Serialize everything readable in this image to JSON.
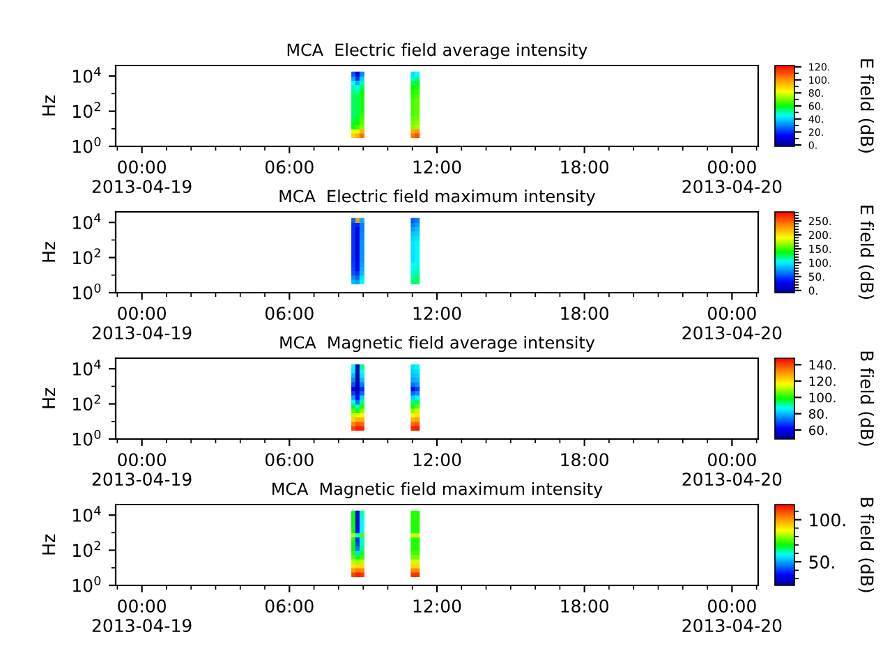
{
  "chart_data": [
    {
      "type": "scatter",
      "title": "MCA  Electric field average intensity",
      "ylabel": "Hz",
      "clabel": "E field (dB)",
      "log": "y",
      "marker": "square",
      "x": [
        "2013-04-19T08:37",
        "2013-04-19T08:37",
        "2013-04-19T08:37",
        "2013-04-19T08:37",
        "2013-04-19T08:37",
        "2013-04-19T08:37",
        "2013-04-19T08:37",
        "2013-04-19T08:37",
        "2013-04-19T08:37",
        "2013-04-19T08:37",
        "2013-04-19T08:37",
        "2013-04-19T08:37",
        "2013-04-19T08:37",
        "2013-04-19T08:37",
        "2013-04-19T08:37",
        "2013-04-19T08:47",
        "2013-04-19T08:47",
        "2013-04-19T08:47",
        "2013-04-19T08:47",
        "2013-04-19T08:47",
        "2013-04-19T08:47",
        "2013-04-19T08:47",
        "2013-04-19T08:47",
        "2013-04-19T08:47",
        "2013-04-19T08:47",
        "2013-04-19T08:47",
        "2013-04-19T08:47",
        "2013-04-19T08:47",
        "2013-04-19T08:47",
        "2013-04-19T08:47",
        "2013-04-19T08:57",
        "2013-04-19T08:57",
        "2013-04-19T08:57",
        "2013-04-19T08:57",
        "2013-04-19T08:57",
        "2013-04-19T08:57",
        "2013-04-19T08:57",
        "2013-04-19T08:57",
        "2013-04-19T08:57",
        "2013-04-19T08:57",
        "2013-04-19T08:57",
        "2013-04-19T08:57",
        "2013-04-19T08:57",
        "2013-04-19T08:57",
        "2013-04-19T08:57",
        "2013-04-19T11:02",
        "2013-04-19T11:02",
        "2013-04-19T11:02",
        "2013-04-19T11:02",
        "2013-04-19T11:02",
        "2013-04-19T11:02",
        "2013-04-19T11:02",
        "2013-04-19T11:02",
        "2013-04-19T11:02",
        "2013-04-19T11:02",
        "2013-04-19T11:02",
        "2013-04-19T11:02",
        "2013-04-19T11:02",
        "2013-04-19T11:02",
        "2013-04-19T11:02",
        "2013-04-19T11:12",
        "2013-04-19T11:12",
        "2013-04-19T11:12",
        "2013-04-19T11:12",
        "2013-04-19T11:12",
        "2013-04-19T11:12",
        "2013-04-19T11:12",
        "2013-04-19T11:12",
        "2013-04-19T11:12",
        "2013-04-19T11:12",
        "2013-04-19T11:12",
        "2013-04-19T11:12",
        "2013-04-19T11:12",
        "2013-04-19T11:12",
        "2013-04-19T11:12"
      ],
      "values": [
        4.2,
        7.5,
        13,
        24,
        42,
        75,
        130,
        240,
        420,
        750,
        1300,
        2400,
        4200,
        7500,
        13000,
        4.2,
        7.5,
        13,
        24,
        42,
        75,
        130,
        240,
        420,
        750,
        1300,
        2400,
        4200,
        7500,
        13000,
        4.2,
        7.5,
        13,
        24,
        42,
        75,
        130,
        240,
        420,
        750,
        1300,
        2400,
        4200,
        7500,
        13000,
        4.2,
        7.5,
        13,
        24,
        42,
        75,
        130,
        240,
        420,
        750,
        1300,
        2400,
        4200,
        7500,
        13000,
        4.2,
        7.5,
        13,
        24,
        42,
        75,
        130,
        240,
        420,
        750,
        1300,
        2400,
        4200,
        7500,
        13000
      ],
      "cvalues": [
        90,
        80,
        62,
        58,
        55,
        55,
        55,
        55,
        55,
        55,
        52,
        50,
        45,
        35,
        25,
        95,
        80,
        65,
        60,
        58,
        55,
        55,
        55,
        55,
        55,
        50,
        45,
        35,
        20,
        8,
        105,
        95,
        72,
        68,
        66,
        64,
        62,
        62,
        62,
        62,
        60,
        55,
        50,
        40,
        30,
        105,
        95,
        72,
        70,
        68,
        66,
        66,
        66,
        66,
        64,
        62,
        60,
        55,
        48,
        42,
        110,
        100,
        75,
        72,
        70,
        68,
        68,
        68,
        68,
        66,
        64,
        62,
        58,
        52,
        45
      ],
      "xlim": [
        "2013-04-18T22:56",
        "2013-04-20T01:04"
      ],
      "xticks": [
        {
          "value": "2013-04-18T23:00",
          "label": null
        },
        {
          "value": "2013-04-19T00:00",
          "label": "00:00\n2013-04-19"
        },
        {
          "value": "2013-04-19T01:00",
          "label": null
        },
        {
          "value": "2013-04-19T02:00",
          "label": null
        },
        {
          "value": "2013-04-19T03:00",
          "label": null
        },
        {
          "value": "2013-04-19T04:00",
          "label": null
        },
        {
          "value": "2013-04-19T05:00",
          "label": null
        },
        {
          "value": "2013-04-19T06:00",
          "label": "06:00"
        },
        {
          "value": "2013-04-19T07:00",
          "label": null
        },
        {
          "value": "2013-04-19T08:00",
          "label": null
        },
        {
          "value": "2013-04-19T09:00",
          "label": null
        },
        {
          "value": "2013-04-19T10:00",
          "label": null
        },
        {
          "value": "2013-04-19T11:00",
          "label": null
        },
        {
          "value": "2013-04-19T12:00",
          "label": "12:00"
        },
        {
          "value": "2013-04-19T13:00",
          "label": null
        },
        {
          "value": "2013-04-19T14:00",
          "label": null
        },
        {
          "value": "2013-04-19T15:00",
          "label": null
        },
        {
          "value": "2013-04-19T16:00",
          "label": null
        },
        {
          "value": "2013-04-19T17:00",
          "label": null
        },
        {
          "value": "2013-04-19T18:00",
          "label": "18:00"
        },
        {
          "value": "2013-04-19T19:00",
          "label": null
        },
        {
          "value": "2013-04-19T20:00",
          "label": null
        },
        {
          "value": "2013-04-19T21:00",
          "label": null
        },
        {
          "value": "2013-04-19T22:00",
          "label": null
        },
        {
          "value": "2013-04-19T23:00",
          "label": null
        },
        {
          "value": "2013-04-20T00:00",
          "label": "00:00\n2013-04-20"
        },
        {
          "value": "2013-04-20T01:00",
          "label": null
        }
      ],
      "ylim": [
        1,
        40000
      ],
      "yticks": [
        {
          "value": 1,
          "label": "10$^{0}$"
        },
        {
          "value": 10,
          "label": null
        },
        {
          "value": 100,
          "label": "10$^{2}$"
        },
        {
          "value": 1000,
          "label": null
        },
        {
          "value": 10000,
          "label": "10$^{4}$"
        }
      ],
      "clim": [
        -2,
        122
      ],
      "cticks": [
        {
          "value": 0,
          "label": "0."
        },
        {
          "value": 10,
          "label": null
        },
        {
          "value": 20,
          "label": "20."
        },
        {
          "value": 30,
          "label": null
        },
        {
          "value": 40,
          "label": "40."
        },
        {
          "value": 50,
          "label": null
        },
        {
          "value": 60,
          "label": "60."
        },
        {
          "value": 70,
          "label": null
        },
        {
          "value": 80,
          "label": "80."
        },
        {
          "value": 90,
          "label": null
        },
        {
          "value": 100,
          "label": "100."
        },
        {
          "value": 110,
          "label": null
        },
        {
          "value": 120,
          "label": "120."
        }
      ]
    },
    {
      "type": "scatter",
      "title": "MCA  Electric field maximum intensity",
      "ylabel": "Hz",
      "clabel": "E field (dB)",
      "log": "y",
      "marker": "square",
      "x": [
        "2013-04-19T08:37",
        "2013-04-19T08:37",
        "2013-04-19T08:37",
        "2013-04-19T08:37",
        "2013-04-19T08:37",
        "2013-04-19T08:37",
        "2013-04-19T08:37",
        "2013-04-19T08:37",
        "2013-04-19T08:37",
        "2013-04-19T08:37",
        "2013-04-19T08:37",
        "2013-04-19T08:37",
        "2013-04-19T08:37",
        "2013-04-19T08:37",
        "2013-04-19T08:37",
        "2013-04-19T08:47",
        "2013-04-19T08:47",
        "2013-04-19T08:47",
        "2013-04-19T08:47",
        "2013-04-19T08:47",
        "2013-04-19T08:47",
        "2013-04-19T08:47",
        "2013-04-19T08:47",
        "2013-04-19T08:47",
        "2013-04-19T08:47",
        "2013-04-19T08:47",
        "2013-04-19T08:47",
        "2013-04-19T08:47",
        "2013-04-19T08:47",
        "2013-04-19T08:47",
        "2013-04-19T08:57",
        "2013-04-19T08:57",
        "2013-04-19T08:57",
        "2013-04-19T08:57",
        "2013-04-19T08:57",
        "2013-04-19T08:57",
        "2013-04-19T08:57",
        "2013-04-19T08:57",
        "2013-04-19T08:57",
        "2013-04-19T08:57",
        "2013-04-19T08:57",
        "2013-04-19T08:57",
        "2013-04-19T08:57",
        "2013-04-19T08:57",
        "2013-04-19T08:57",
        "2013-04-19T11:02",
        "2013-04-19T11:02",
        "2013-04-19T11:02",
        "2013-04-19T11:02",
        "2013-04-19T11:02",
        "2013-04-19T11:02",
        "2013-04-19T11:02",
        "2013-04-19T11:02",
        "2013-04-19T11:02",
        "2013-04-19T11:02",
        "2013-04-19T11:02",
        "2013-04-19T11:02",
        "2013-04-19T11:02",
        "2013-04-19T11:02",
        "2013-04-19T11:02",
        "2013-04-19T11:12",
        "2013-04-19T11:12",
        "2013-04-19T11:12",
        "2013-04-19T11:12",
        "2013-04-19T11:12",
        "2013-04-19T11:12",
        "2013-04-19T11:12",
        "2013-04-19T11:12",
        "2013-04-19T11:12",
        "2013-04-19T11:12",
        "2013-04-19T11:12",
        "2013-04-19T11:12",
        "2013-04-19T11:12",
        "2013-04-19T11:12",
        "2013-04-19T11:12"
      ],
      "values": [
        4.2,
        7.5,
        13,
        24,
        42,
        75,
        130,
        240,
        420,
        750,
        1300,
        2400,
        4200,
        7500,
        13000,
        4.2,
        7.5,
        13,
        24,
        42,
        75,
        130,
        240,
        420,
        750,
        1300,
        2400,
        4200,
        7500,
        13000,
        4.2,
        7.5,
        13,
        24,
        42,
        75,
        130,
        240,
        420,
        750,
        1300,
        2400,
        4200,
        7500,
        13000,
        4.2,
        7.5,
        13,
        24,
        42,
        75,
        130,
        240,
        420,
        750,
        1300,
        2400,
        4200,
        7500,
        13000,
        4.2,
        7.5,
        13,
        24,
        42,
        75,
        130,
        240,
        420,
        750,
        1300,
        2400,
        4200,
        7500,
        13000
      ],
      "cvalues": [
        85,
        70,
        55,
        50,
        48,
        45,
        45,
        45,
        45,
        45,
        45,
        45,
        45,
        45,
        60,
        75,
        60,
        40,
        30,
        25,
        22,
        20,
        20,
        20,
        20,
        20,
        20,
        20,
        40,
        230,
        105,
        95,
        85,
        80,
        75,
        72,
        72,
        72,
        72,
        72,
        70,
        70,
        65,
        65,
        80,
        120,
        115,
        110,
        105,
        100,
        95,
        95,
        95,
        95,
        95,
        90,
        85,
        75,
        65,
        55,
        125,
        120,
        115,
        110,
        105,
        100,
        100,
        100,
        100,
        100,
        95,
        90,
        85,
        75,
        65
      ],
      "xlim": [
        "2013-04-18T22:56",
        "2013-04-20T01:04"
      ],
      "xticks": [
        {
          "value": "2013-04-18T23:00",
          "label": null
        },
        {
          "value": "2013-04-19T00:00",
          "label": "00:00\n2013-04-19"
        },
        {
          "value": "2013-04-19T01:00",
          "label": null
        },
        {
          "value": "2013-04-19T02:00",
          "label": null
        },
        {
          "value": "2013-04-19T03:00",
          "label": null
        },
        {
          "value": "2013-04-19T04:00",
          "label": null
        },
        {
          "value": "2013-04-19T05:00",
          "label": null
        },
        {
          "value": "2013-04-19T06:00",
          "label": "06:00"
        },
        {
          "value": "2013-04-19T07:00",
          "label": null
        },
        {
          "value": "2013-04-19T08:00",
          "label": null
        },
        {
          "value": "2013-04-19T09:00",
          "label": null
        },
        {
          "value": "2013-04-19T10:00",
          "label": null
        },
        {
          "value": "2013-04-19T11:00",
          "label": null
        },
        {
          "value": "2013-04-19T12:00",
          "label": "12:00"
        },
        {
          "value": "2013-04-19T13:00",
          "label": null
        },
        {
          "value": "2013-04-19T14:00",
          "label": null
        },
        {
          "value": "2013-04-19T15:00",
          "label": null
        },
        {
          "value": "2013-04-19T16:00",
          "label": null
        },
        {
          "value": "2013-04-19T17:00",
          "label": null
        },
        {
          "value": "2013-04-19T18:00",
          "label": "18:00"
        },
        {
          "value": "2013-04-19T19:00",
          "label": null
        },
        {
          "value": "2013-04-19T20:00",
          "label": null
        },
        {
          "value": "2013-04-19T21:00",
          "label": null
        },
        {
          "value": "2013-04-19T22:00",
          "label": null
        },
        {
          "value": "2013-04-19T23:00",
          "label": null
        },
        {
          "value": "2013-04-20T00:00",
          "label": "00:00\n2013-04-20"
        },
        {
          "value": "2013-04-20T01:00",
          "label": null
        }
      ],
      "ylim": [
        1,
        40000
      ],
      "yticks": [
        {
          "value": 1,
          "label": "10$^{0}$"
        },
        {
          "value": 10,
          "label": null
        },
        {
          "value": 100,
          "label": "10$^{2}$"
        },
        {
          "value": 1000,
          "label": null
        },
        {
          "value": 10000,
          "label": "10$^{4}$"
        }
      ],
      "clim": [
        -8,
        283
      ],
      "cticks": [
        {
          "value": 0,
          "label": "0."
        },
        {
          "value": 10,
          "label": null
        },
        {
          "value": 20,
          "label": null
        },
        {
          "value": 30,
          "label": null
        },
        {
          "value": 40,
          "label": null
        },
        {
          "value": 50,
          "label": "50."
        },
        {
          "value": 60,
          "label": null
        },
        {
          "value": 70,
          "label": null
        },
        {
          "value": 80,
          "label": null
        },
        {
          "value": 90,
          "label": null
        },
        {
          "value": 100,
          "label": "100."
        },
        {
          "value": 110,
          "label": null
        },
        {
          "value": 120,
          "label": null
        },
        {
          "value": 130,
          "label": null
        },
        {
          "value": 140,
          "label": null
        },
        {
          "value": 150,
          "label": "150."
        },
        {
          "value": 160,
          "label": null
        },
        {
          "value": 170,
          "label": null
        },
        {
          "value": 180,
          "label": null
        },
        {
          "value": 190,
          "label": null
        },
        {
          "value": 200,
          "label": "200."
        },
        {
          "value": 210,
          "label": null
        },
        {
          "value": 220,
          "label": null
        },
        {
          "value": 230,
          "label": null
        },
        {
          "value": 240,
          "label": null
        },
        {
          "value": 250,
          "label": "250."
        },
        {
          "value": 260,
          "label": null
        },
        {
          "value": 270,
          "label": null
        },
        {
          "value": 280,
          "label": null
        }
      ]
    },
    {
      "type": "scatter",
      "title": "MCA  Magnetic field average intensity",
      "ylabel": "Hz",
      "clabel": "B field (dB)",
      "log": "y",
      "marker": "square",
      "x": [
        "2013-04-19T08:37",
        "2013-04-19T08:37",
        "2013-04-19T08:37",
        "2013-04-19T08:37",
        "2013-04-19T08:37",
        "2013-04-19T08:37",
        "2013-04-19T08:37",
        "2013-04-19T08:37",
        "2013-04-19T08:37",
        "2013-04-19T08:37",
        "2013-04-19T08:37",
        "2013-04-19T08:37",
        "2013-04-19T08:37",
        "2013-04-19T08:37",
        "2013-04-19T08:37",
        "2013-04-19T08:47",
        "2013-04-19T08:47",
        "2013-04-19T08:47",
        "2013-04-19T08:47",
        "2013-04-19T08:47",
        "2013-04-19T08:47",
        "2013-04-19T08:47",
        "2013-04-19T08:47",
        "2013-04-19T08:47",
        "2013-04-19T08:47",
        "2013-04-19T08:47",
        "2013-04-19T08:47",
        "2013-04-19T08:47",
        "2013-04-19T08:47",
        "2013-04-19T08:47",
        "2013-04-19T08:57",
        "2013-04-19T08:57",
        "2013-04-19T08:57",
        "2013-04-19T08:57",
        "2013-04-19T08:57",
        "2013-04-19T08:57",
        "2013-04-19T08:57",
        "2013-04-19T08:57",
        "2013-04-19T08:57",
        "2013-04-19T08:57",
        "2013-04-19T08:57",
        "2013-04-19T08:57",
        "2013-04-19T08:57",
        "2013-04-19T08:57",
        "2013-04-19T08:57",
        "2013-04-19T11:02",
        "2013-04-19T11:02",
        "2013-04-19T11:02",
        "2013-04-19T11:02",
        "2013-04-19T11:02",
        "2013-04-19T11:02",
        "2013-04-19T11:02",
        "2013-04-19T11:02",
        "2013-04-19T11:02",
        "2013-04-19T11:02",
        "2013-04-19T11:02",
        "2013-04-19T11:02",
        "2013-04-19T11:02",
        "2013-04-19T11:02",
        "2013-04-19T11:02",
        "2013-04-19T11:12",
        "2013-04-19T11:12",
        "2013-04-19T11:12",
        "2013-04-19T11:12",
        "2013-04-19T11:12",
        "2013-04-19T11:12",
        "2013-04-19T11:12",
        "2013-04-19T11:12",
        "2013-04-19T11:12",
        "2013-04-19T11:12",
        "2013-04-19T11:12",
        "2013-04-19T11:12",
        "2013-04-19T11:12",
        "2013-04-19T11:12",
        "2013-04-19T11:12"
      ],
      "values": [
        4.2,
        7.5,
        13,
        24,
        42,
        75,
        130,
        240,
        420,
        750,
        1300,
        2400,
        4200,
        7500,
        13000,
        4.2,
        7.5,
        13,
        24,
        42,
        75,
        130,
        240,
        420,
        750,
        1300,
        2400,
        4200,
        7500,
        13000,
        4.2,
        7.5,
        13,
        24,
        42,
        75,
        130,
        240,
        420,
        750,
        1300,
        2400,
        4200,
        7500,
        13000,
        4.2,
        7.5,
        13,
        24,
        42,
        75,
        130,
        240,
        420,
        750,
        1300,
        2400,
        4200,
        7500,
        13000,
        4.2,
        7.5,
        13,
        24,
        42,
        75,
        130,
        240,
        420,
        750,
        1300,
        2400,
        4200,
        7500,
        13000
      ],
      "cvalues": [
        140,
        132,
        122,
        112,
        104,
        96,
        88,
        78,
        68,
        62,
        70,
        76,
        80,
        85,
        88,
        145,
        138,
        126,
        114,
        100,
        86,
        72,
        62,
        55,
        52,
        52,
        52,
        52,
        53,
        55,
        144,
        136,
        126,
        116,
        108,
        100,
        92,
        82,
        72,
        66,
        74,
        80,
        84,
        88,
        92,
        144,
        136,
        126,
        116,
        108,
        100,
        92,
        82,
        72,
        62,
        72,
        78,
        80,
        82,
        84,
        145,
        138,
        128,
        120,
        112,
        104,
        95,
        86,
        76,
        68,
        76,
        80,
        82,
        84,
        86
      ],
      "xlim": [
        "2013-04-18T22:56",
        "2013-04-20T01:04"
      ],
      "xticks": [
        {
          "value": "2013-04-18T23:00",
          "label": null
        },
        {
          "value": "2013-04-19T00:00",
          "label": "00:00\n2013-04-19"
        },
        {
          "value": "2013-04-19T01:00",
          "label": null
        },
        {
          "value": "2013-04-19T02:00",
          "label": null
        },
        {
          "value": "2013-04-19T03:00",
          "label": null
        },
        {
          "value": "2013-04-19T04:00",
          "label": null
        },
        {
          "value": "2013-04-19T05:00",
          "label": null
        },
        {
          "value": "2013-04-19T06:00",
          "label": "06:00"
        },
        {
          "value": "2013-04-19T07:00",
          "label": null
        },
        {
          "value": "2013-04-19T08:00",
          "label": null
        },
        {
          "value": "2013-04-19T09:00",
          "label": null
        },
        {
          "value": "2013-04-19T10:00",
          "label": null
        },
        {
          "value": "2013-04-19T11:00",
          "label": null
        },
        {
          "value": "2013-04-19T12:00",
          "label": "12:00"
        },
        {
          "value": "2013-04-19T13:00",
          "label": null
        },
        {
          "value": "2013-04-19T14:00",
          "label": null
        },
        {
          "value": "2013-04-19T15:00",
          "label": null
        },
        {
          "value": "2013-04-19T16:00",
          "label": null
        },
        {
          "value": "2013-04-19T17:00",
          "label": null
        },
        {
          "value": "2013-04-19T18:00",
          "label": "18:00"
        },
        {
          "value": "2013-04-19T19:00",
          "label": null
        },
        {
          "value": "2013-04-19T20:00",
          "label": null
        },
        {
          "value": "2013-04-19T21:00",
          "label": null
        },
        {
          "value": "2013-04-19T22:00",
          "label": null
        },
        {
          "value": "2013-04-19T23:00",
          "label": null
        },
        {
          "value": "2013-04-20T00:00",
          "label": "00:00\n2013-04-20"
        },
        {
          "value": "2013-04-20T01:00",
          "label": null
        }
      ],
      "ylim": [
        1,
        40000
      ],
      "yticks": [
        {
          "value": 1,
          "label": "10$^{0}$"
        },
        {
          "value": 10,
          "label": null
        },
        {
          "value": 100,
          "label": "10$^{2}$"
        },
        {
          "value": 1000,
          "label": null
        },
        {
          "value": 10000,
          "label": "10$^{4}$"
        }
      ],
      "clim": [
        49,
        148
      ],
      "cticks": [
        {
          "value": 60,
          "label": "60."
        },
        {
          "value": 80,
          "label": "80."
        },
        {
          "value": 100,
          "label": "100."
        },
        {
          "value": 120,
          "label": "120."
        },
        {
          "value": 140,
          "label": "140."
        }
      ]
    },
    {
      "type": "scatter",
      "title": "MCA  Magnetic field maximum intensity",
      "ylabel": "Hz",
      "clabel": "B field (dB)",
      "log": "y",
      "marker": "square",
      "x": [
        "2013-04-19T08:37",
        "2013-04-19T08:37",
        "2013-04-19T08:37",
        "2013-04-19T08:37",
        "2013-04-19T08:37",
        "2013-04-19T08:37",
        "2013-04-19T08:37",
        "2013-04-19T08:37",
        "2013-04-19T08:37",
        "2013-04-19T08:37",
        "2013-04-19T08:37",
        "2013-04-19T08:37",
        "2013-04-19T08:37",
        "2013-04-19T08:37",
        "2013-04-19T08:37",
        "2013-04-19T08:47",
        "2013-04-19T08:47",
        "2013-04-19T08:47",
        "2013-04-19T08:47",
        "2013-04-19T08:47",
        "2013-04-19T08:47",
        "2013-04-19T08:47",
        "2013-04-19T08:47",
        "2013-04-19T08:47",
        "2013-04-19T08:47",
        "2013-04-19T08:47",
        "2013-04-19T08:47",
        "2013-04-19T08:47",
        "2013-04-19T08:47",
        "2013-04-19T08:47",
        "2013-04-19T08:57",
        "2013-04-19T08:57",
        "2013-04-19T08:57",
        "2013-04-19T08:57",
        "2013-04-19T08:57",
        "2013-04-19T08:57",
        "2013-04-19T08:57",
        "2013-04-19T08:57",
        "2013-04-19T08:57",
        "2013-04-19T08:57",
        "2013-04-19T08:57",
        "2013-04-19T08:57",
        "2013-04-19T08:57",
        "2013-04-19T08:57",
        "2013-04-19T08:57",
        "2013-04-19T11:02",
        "2013-04-19T11:02",
        "2013-04-19T11:02",
        "2013-04-19T11:02",
        "2013-04-19T11:02",
        "2013-04-19T11:02",
        "2013-04-19T11:02",
        "2013-04-19T11:02",
        "2013-04-19T11:02",
        "2013-04-19T11:02",
        "2013-04-19T11:02",
        "2013-04-19T11:02",
        "2013-04-19T11:02",
        "2013-04-19T11:02",
        "2013-04-19T11:02",
        "2013-04-19T11:12",
        "2013-04-19T11:12",
        "2013-04-19T11:12",
        "2013-04-19T11:12",
        "2013-04-19T11:12",
        "2013-04-19T11:12",
        "2013-04-19T11:12",
        "2013-04-19T11:12",
        "2013-04-19T11:12",
        "2013-04-19T11:12",
        "2013-04-19T11:12",
        "2013-04-19T11:12",
        "2013-04-19T11:12",
        "2013-04-19T11:12",
        "2013-04-19T11:12"
      ],
      "values": [
        4.2,
        7.5,
        13,
        24,
        42,
        75,
        130,
        240,
        420,
        750,
        1300,
        2400,
        4200,
        7500,
        13000,
        4.2,
        7.5,
        13,
        24,
        42,
        75,
        130,
        240,
        420,
        750,
        1300,
        2400,
        4200,
        7500,
        13000,
        4.2,
        7.5,
        13,
        24,
        42,
        75,
        130,
        240,
        420,
        750,
        1300,
        2400,
        4200,
        7500,
        13000,
        4.2,
        7.5,
        13,
        24,
        42,
        75,
        130,
        240,
        420,
        750,
        1300,
        2400,
        4200,
        7500,
        13000,
        4.2,
        7.5,
        13,
        24,
        42,
        75,
        130,
        240,
        420,
        750,
        1300,
        2400,
        4200,
        7500,
        13000
      ],
      "cvalues": [
        110,
        100,
        90,
        82,
        76,
        72,
        70,
        70,
        72,
        82,
        70,
        70,
        70,
        70,
        70,
        114,
        104,
        92,
        80,
        68,
        55,
        45,
        40,
        38,
        60,
        35,
        32,
        30,
        30,
        32,
        112,
        102,
        92,
        82,
        74,
        68,
        64,
        62,
        62,
        75,
        58,
        58,
        58,
        60,
        62,
        112,
        102,
        92,
        84,
        78,
        74,
        72,
        72,
        72,
        84,
        72,
        72,
        72,
        72,
        72,
        112,
        102,
        92,
        84,
        78,
        74,
        72,
        72,
        72,
        84,
        72,
        72,
        72,
        72,
        72
      ],
      "xlim": [
        "2013-04-18T22:56",
        "2013-04-20T01:04"
      ],
      "xticks": [
        {
          "value": "2013-04-18T23:00",
          "label": null
        },
        {
          "value": "2013-04-19T00:00",
          "label": "00:00\n2013-04-19"
        },
        {
          "value": "2013-04-19T01:00",
          "label": null
        },
        {
          "value": "2013-04-19T02:00",
          "label": null
        },
        {
          "value": "2013-04-19T03:00",
          "label": null
        },
        {
          "value": "2013-04-19T04:00",
          "label": null
        },
        {
          "value": "2013-04-19T05:00",
          "label": null
        },
        {
          "value": "2013-04-19T06:00",
          "label": "06:00"
        },
        {
          "value": "2013-04-19T07:00",
          "label": null
        },
        {
          "value": "2013-04-19T08:00",
          "label": null
        },
        {
          "value": "2013-04-19T09:00",
          "label": null
        },
        {
          "value": "2013-04-19T10:00",
          "label": null
        },
        {
          "value": "2013-04-19T11:00",
          "label": null
        },
        {
          "value": "2013-04-19T12:00",
          "label": "12:00"
        },
        {
          "value": "2013-04-19T13:00",
          "label": null
        },
        {
          "value": "2013-04-19T14:00",
          "label": null
        },
        {
          "value": "2013-04-19T15:00",
          "label": null
        },
        {
          "value": "2013-04-19T16:00",
          "label": null
        },
        {
          "value": "2013-04-19T17:00",
          "label": null
        },
        {
          "value": "2013-04-19T18:00",
          "label": "18:00"
        },
        {
          "value": "2013-04-19T19:00",
          "label": null
        },
        {
          "value": "2013-04-19T20:00",
          "label": null
        },
        {
          "value": "2013-04-19T21:00",
          "label": null
        },
        {
          "value": "2013-04-19T22:00",
          "label": null
        },
        {
          "value": "2013-04-19T23:00",
          "label": null
        },
        {
          "value": "2013-04-20T00:00",
          "label": "00:00\n2013-04-20"
        },
        {
          "value": "2013-04-20T01:00",
          "label": null
        }
      ],
      "ylim": [
        1,
        40000
      ],
      "yticks": [
        {
          "value": 1,
          "label": "10$^{0}$"
        },
        {
          "value": 10,
          "label": null
        },
        {
          "value": 100,
          "label": "10$^{2}$"
        },
        {
          "value": 1000,
          "label": null
        },
        {
          "value": 10000,
          "label": "10$^{4}$"
        }
      ],
      "clim": [
        22,
        118
      ],
      "cticks": [
        {
          "value": 30,
          "label": null
        },
        {
          "value": 40,
          "label": null
        },
        {
          "value": 50,
          "label": "50."
        },
        {
          "value": 60,
          "label": null
        },
        {
          "value": 70,
          "label": null
        },
        {
          "value": 80,
          "label": null
        },
        {
          "value": 90,
          "label": null
        },
        {
          "value": 100,
          "label": "100."
        },
        {
          "value": 110,
          "label": null
        }
      ]
    }
  ]
}
